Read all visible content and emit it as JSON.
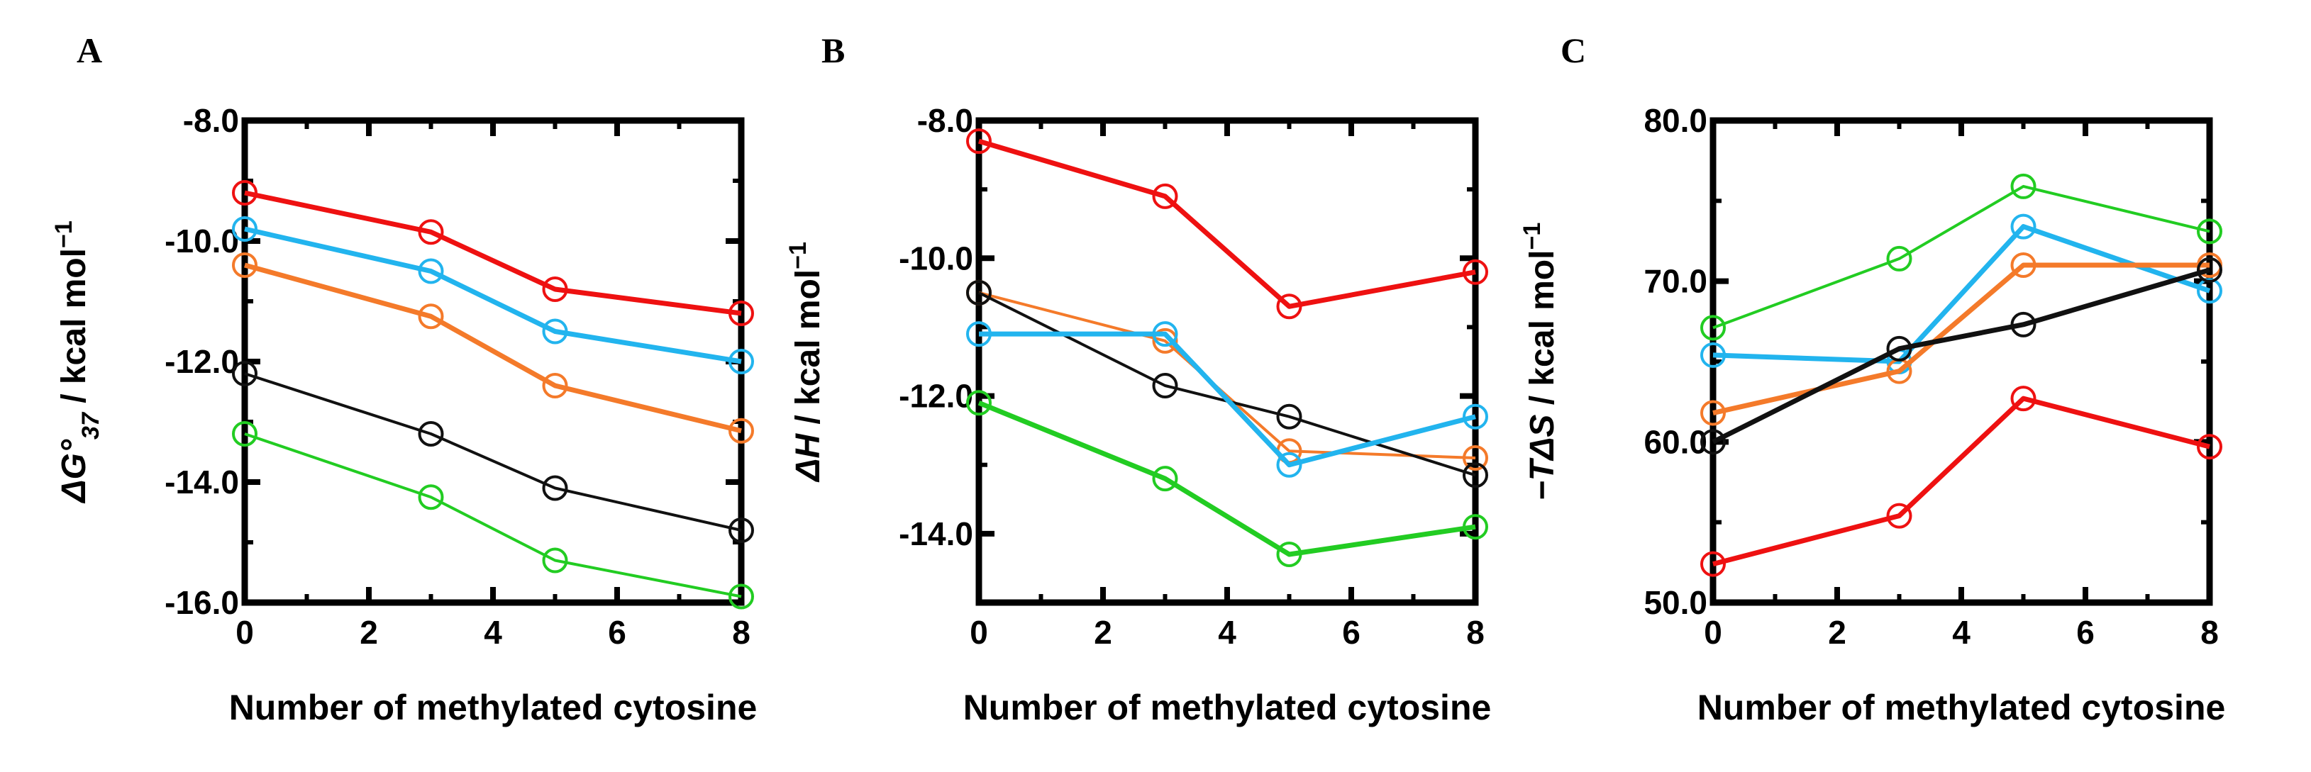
{
  "chart_data": [
    {
      "type": "line",
      "panel": "A",
      "ylabel_parts": [
        {
          "text": "ΔG°",
          "italic": true
        },
        {
          "text": "37",
          "italic": true,
          "sub": true
        },
        {
          "text": " / kcal mol",
          "italic": false
        },
        {
          "text": "−1",
          "sup": true
        }
      ],
      "xlabel": "Number of methylated cytosine",
      "xlim": [
        0,
        8
      ],
      "ylim": [
        -16,
        -8
      ],
      "xticks": [
        0,
        2,
        4,
        6,
        8
      ],
      "xtick_labels": [
        "0",
        "2",
        "4",
        "6",
        "8"
      ],
      "yticks": [
        -8,
        -10,
        -12,
        -14,
        -16
      ],
      "ytick_labels": [
        "-8.0",
        "-10.0",
        "-12.0",
        "-14.0",
        "-16.0"
      ],
      "x": [
        0,
        3,
        5,
        8
      ],
      "series": [
        {
          "name": "red",
          "color": "#ee1111",
          "width": "thick",
          "values": [
            -9.2,
            -9.85,
            -10.8,
            -11.2
          ]
        },
        {
          "name": "cyan",
          "color": "#22b4ee",
          "width": "thick",
          "values": [
            -9.8,
            -10.5,
            -11.5,
            -12.0
          ]
        },
        {
          "name": "orange",
          "color": "#f47a2a",
          "width": "thick",
          "values": [
            -10.4,
            -11.25,
            -12.4,
            -13.15
          ]
        },
        {
          "name": "black",
          "color": "#111111",
          "width": "thin",
          "values": [
            -12.2,
            -13.2,
            -14.1,
            -14.8
          ]
        },
        {
          "name": "green",
          "color": "#22cc22",
          "width": "thin",
          "values": [
            -13.2,
            -14.25,
            -15.3,
            -15.9
          ]
        }
      ]
    },
    {
      "type": "line",
      "panel": "B",
      "ylabel_parts": [
        {
          "text": "ΔH",
          "italic": true
        },
        {
          "text": " / kcal mol",
          "italic": false
        },
        {
          "text": "−1",
          "sup": true
        }
      ],
      "xlabel": "Number of methylated cytosine",
      "xlim": [
        0,
        8
      ],
      "ylim": [
        -15,
        -8
      ],
      "xticks": [
        0,
        2,
        4,
        6,
        8
      ],
      "xtick_labels": [
        "0",
        "2",
        "4",
        "6",
        "8"
      ],
      "yticks": [
        -8,
        -10,
        -12,
        -14
      ],
      "ytick_labels": [
        "-8.0",
        "-10.0",
        "-12.0",
        "-14.0"
      ],
      "x": [
        0,
        3,
        5,
        8
      ],
      "series": [
        {
          "name": "red",
          "color": "#ee1111",
          "width": "thick",
          "values": [
            -8.3,
            -9.1,
            -10.7,
            -10.2
          ]
        },
        {
          "name": "orange",
          "color": "#f47a2a",
          "width": "thin",
          "values": [
            -10.5,
            -11.2,
            -12.8,
            -12.9
          ]
        },
        {
          "name": "black",
          "color": "#111111",
          "width": "thin",
          "values": [
            -10.5,
            -11.85,
            -12.3,
            -13.15
          ]
        },
        {
          "name": "cyan",
          "color": "#22b4ee",
          "width": "thick",
          "values": [
            -11.1,
            -11.1,
            -13.0,
            -12.3
          ]
        },
        {
          "name": "green",
          "color": "#22cc22",
          "width": "thick",
          "values": [
            -12.1,
            -13.2,
            -14.3,
            -13.9
          ]
        }
      ]
    },
    {
      "type": "line",
      "panel": "C",
      "ylabel_parts": [
        {
          "text": "−TΔS",
          "italic": true
        },
        {
          "text": " / kcal mol",
          "italic": false
        },
        {
          "text": "−1",
          "sup": true
        }
      ],
      "xlabel": "Number of methylated cytosine",
      "xlim": [
        0,
        8
      ],
      "ylim": [
        50,
        80
      ],
      "xticks": [
        0,
        2,
        4,
        6,
        8
      ],
      "xtick_labels": [
        "0",
        "2",
        "4",
        "6",
        "8"
      ],
      "yticks": [
        50,
        60,
        70,
        80
      ],
      "ytick_labels": [
        "50.0",
        "60.0",
        "70.0",
        "80.0"
      ],
      "x": [
        0,
        3,
        5,
        8
      ],
      "series": [
        {
          "name": "green",
          "color": "#22cc22",
          "width": "thin",
          "values": [
            67.1,
            71.4,
            75.9,
            73.1
          ]
        },
        {
          "name": "cyan",
          "color": "#22b4ee",
          "width": "thick",
          "values": [
            65.4,
            65.0,
            73.4,
            69.4
          ]
        },
        {
          "name": "orange",
          "color": "#f47a2a",
          "width": "thick",
          "values": [
            61.8,
            64.4,
            71.0,
            71.0
          ]
        },
        {
          "name": "black",
          "color": "#111111",
          "width": "thick",
          "values": [
            60.0,
            65.8,
            67.3,
            70.7
          ]
        },
        {
          "name": "red",
          "color": "#ee1111",
          "width": "thick",
          "values": [
            52.4,
            55.4,
            62.7,
            59.7
          ]
        }
      ]
    }
  ]
}
